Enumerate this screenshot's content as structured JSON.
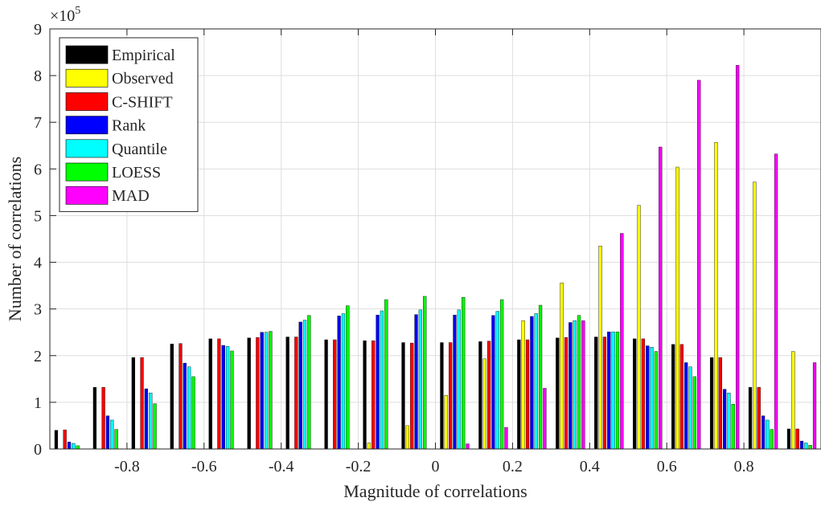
{
  "chart_data": {
    "type": "bar",
    "xlabel": "Magnitude of correlations",
    "ylabel": "Number of correlations",
    "y_multiplier_label": "×10",
    "y_multiplier_exponent": "5",
    "xlim": [
      -1.0,
      1.0
    ],
    "ylim": [
      0,
      9
    ],
    "x_ticks": [
      -0.8,
      -0.6,
      -0.4,
      -0.2,
      0,
      0.2,
      0.4,
      0.6,
      0.8
    ],
    "x_tick_labels": [
      "-0.8",
      "-0.6",
      "-0.4",
      "-0.2",
      "0",
      "0.2",
      "0.4",
      "0.6",
      "0.8"
    ],
    "y_ticks": [
      0,
      1,
      2,
      3,
      4,
      5,
      6,
      7,
      8,
      9
    ],
    "y_tick_labels": [
      "0",
      "1",
      "2",
      "3",
      "4",
      "5",
      "6",
      "7",
      "8",
      "9"
    ],
    "grid": true,
    "legend_position": "top-left",
    "bin_centers": [
      -0.95,
      -0.85,
      -0.75,
      -0.65,
      -0.55,
      -0.45,
      -0.35,
      -0.25,
      -0.15,
      -0.05,
      0.05,
      0.15,
      0.25,
      0.35,
      0.45,
      0.55,
      0.65,
      0.75,
      0.85,
      0.95
    ],
    "series": [
      {
        "name": "Empirical",
        "color": "#000000",
        "values": [
          0.4,
          1.32,
          1.96,
          2.25,
          2.36,
          2.38,
          2.4,
          2.34,
          2.32,
          2.28,
          2.28,
          2.3,
          2.34,
          2.38,
          2.4,
          2.36,
          2.24,
          1.96,
          1.32,
          0.43
        ]
      },
      {
        "name": "Observed",
        "color": "#ffff00",
        "values": [
          0,
          0,
          0,
          0,
          0,
          0,
          0,
          0,
          0.13,
          0.5,
          1.15,
          1.93,
          2.75,
          3.56,
          4.35,
          5.22,
          6.04,
          6.57,
          5.72,
          2.09
        ]
      },
      {
        "name": "C-SHIFT",
        "color": "#ff0000",
        "values": [
          0.41,
          1.32,
          1.96,
          2.26,
          2.36,
          2.39,
          2.4,
          2.34,
          2.32,
          2.27,
          2.28,
          2.31,
          2.34,
          2.39,
          2.4,
          2.36,
          2.24,
          1.96,
          1.32,
          0.43
        ]
      },
      {
        "name": "Rank",
        "color": "#0000ff",
        "values": [
          0.15,
          0.71,
          1.29,
          1.84,
          2.22,
          2.5,
          2.72,
          2.85,
          2.87,
          2.88,
          2.87,
          2.86,
          2.84,
          2.71,
          2.51,
          2.21,
          1.85,
          1.28,
          0.71,
          0.17
        ]
      },
      {
        "name": "Quantile",
        "color": "#00ffff",
        "values": [
          0.12,
          0.62,
          1.2,
          1.76,
          2.2,
          2.5,
          2.76,
          2.9,
          2.96,
          2.98,
          2.98,
          2.95,
          2.9,
          2.75,
          2.51,
          2.18,
          1.76,
          1.2,
          0.62,
          0.13
        ]
      },
      {
        "name": "LOESS",
        "color": "#00ff00",
        "values": [
          0.07,
          0.42,
          0.97,
          1.55,
          2.1,
          2.52,
          2.86,
          3.07,
          3.2,
          3.27,
          3.25,
          3.2,
          3.08,
          2.86,
          2.51,
          2.09,
          1.55,
          0.96,
          0.42,
          0.08
        ]
      },
      {
        "name": "MAD",
        "color": "#ff00ff",
        "values": [
          0,
          0,
          0,
          0,
          0,
          0,
          0,
          0,
          0,
          0,
          0.11,
          0.46,
          1.3,
          2.75,
          4.62,
          6.47,
          7.9,
          8.22,
          6.32,
          1.85
        ]
      }
    ]
  }
}
